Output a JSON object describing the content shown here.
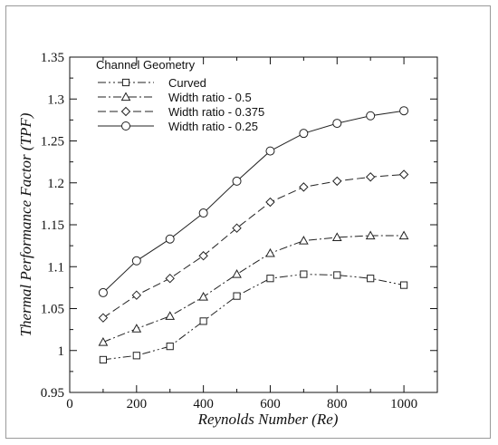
{
  "chart_data": {
    "type": "line",
    "xlabel": "Reynolds Number (Re)",
    "ylabel": "Thermal Performance Factor (TPF)",
    "xlim": [
      0,
      1100
    ],
    "ylim": [
      0.95,
      1.35
    ],
    "xticks": [
      0,
      200,
      400,
      600,
      800,
      1000
    ],
    "yticks": [
      0.95,
      1,
      1.05,
      1.1,
      1.15,
      1.2,
      1.25,
      1.3,
      1.35
    ],
    "xtick_labels": [
      "0",
      "200",
      "400",
      "600",
      "800",
      "1000"
    ],
    "ytick_labels": [
      "0.95",
      "1",
      "1.05",
      "1.1",
      "1.15",
      "1.2",
      "1.25",
      "1.3",
      "1.35"
    ],
    "legend_title": "Channel Geometry",
    "legend_position": "top-left",
    "grid": false,
    "x": [
      100,
      200,
      300,
      400,
      500,
      600,
      700,
      800,
      900,
      1000
    ],
    "series": [
      {
        "name": "Curved",
        "marker": "square",
        "dash": "dash-dot-dot",
        "values": [
          0.989,
          0.994,
          1.005,
          1.035,
          1.065,
          1.086,
          1.091,
          1.09,
          1.086,
          1.078
        ]
      },
      {
        "name": "Width ratio - 0.5",
        "marker": "triangle",
        "dash": "dash-dot",
        "values": [
          1.01,
          1.026,
          1.041,
          1.064,
          1.091,
          1.116,
          1.131,
          1.135,
          1.137,
          1.137
        ]
      },
      {
        "name": "Width ratio - 0.375",
        "marker": "diamond",
        "dash": "dash",
        "values": [
          1.039,
          1.066,
          1.086,
          1.113,
          1.146,
          1.177,
          1.195,
          1.202,
          1.207,
          1.21
        ]
      },
      {
        "name": "Width ratio - 0.25",
        "marker": "circle",
        "dash": "solid",
        "values": [
          1.069,
          1.107,
          1.133,
          1.164,
          1.202,
          1.238,
          1.259,
          1.271,
          1.28,
          1.286
        ]
      }
    ]
  }
}
